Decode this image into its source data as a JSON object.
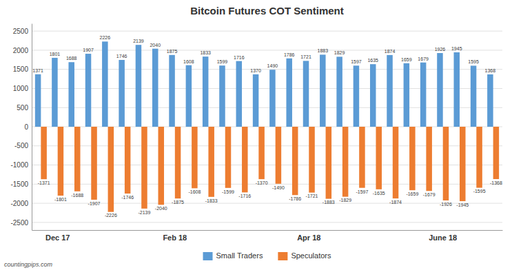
{
  "chart_data": {
    "type": "bar",
    "title": "Bitcoin Futures COT Sentiment",
    "categories": [
      null,
      "Dec 17",
      null,
      null,
      null,
      null,
      null,
      null,
      "Feb 18",
      null,
      null,
      null,
      null,
      null,
      null,
      null,
      "Apr 18",
      null,
      null,
      null,
      null,
      null,
      null,
      null,
      "June 18",
      null,
      null,
      null
    ],
    "series": [
      {
        "name": "Small Traders",
        "color": "#5B9BD5",
        "values": [
          1371,
          1801,
          1688,
          1907,
          2226,
          1746,
          2139,
          2040,
          1875,
          1608,
          1833,
          1599,
          1716,
          1370,
          1490,
          1786,
          1721,
          1883,
          1829,
          1597,
          1635,
          1874,
          1659,
          1679,
          1926,
          1945,
          1595,
          1368
        ]
      },
      {
        "name": "Speculators",
        "color": "#ED7D31",
        "values": [
          -1371,
          -1801,
          -1688,
          -1907,
          -2226,
          -1746,
          -2139,
          -2040,
          -1875,
          -1608,
          -1833,
          -1599,
          -1716,
          -1370,
          -1490,
          -1786,
          -1721,
          -1883,
          -1829,
          -1597,
          -1635,
          -1874,
          -1659,
          -1679,
          -1926,
          -1945,
          -1595,
          -1368
        ]
      }
    ],
    "ylim": [
      -2700,
      2700
    ],
    "yticks": [
      -2500,
      -2000,
      -1500,
      -1000,
      -500,
      0,
      500,
      1000,
      1500,
      2000,
      2500
    ],
    "grid": true,
    "legend": "bottom",
    "data_labels": true,
    "annotations": [
      "countingpips.com"
    ]
  }
}
